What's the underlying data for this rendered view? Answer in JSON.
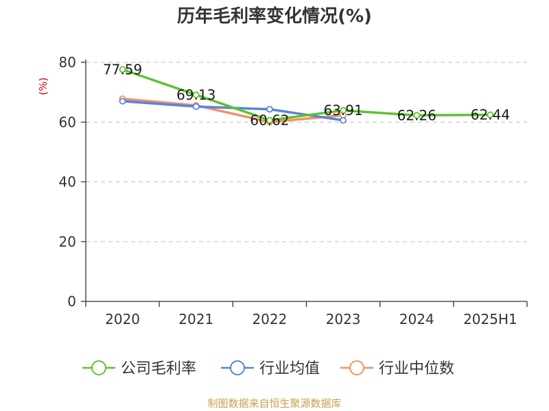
{
  "chart_data": {
    "type": "line",
    "title": "历年毛利率变化情况(%)",
    "ylabel": "(%)",
    "xlabel": "",
    "categories": [
      "2020",
      "2021",
      "2022",
      "2023",
      "2024",
      "2025H1"
    ],
    "ylim": [
      0,
      80
    ],
    "yticks": [
      0,
      20,
      40,
      60,
      80
    ],
    "grid": true,
    "legend_position": "bottom",
    "series": [
      {
        "name": "公司毛利率",
        "color": "#5ec22e",
        "values": [
          77.59,
          69.13,
          60.62,
          63.91,
          62.26,
          62.44
        ],
        "labels": [
          "77.59",
          "69.13",
          "60.62",
          "63.91",
          "62.26",
          "62.44"
        ]
      },
      {
        "name": "行业均值",
        "color": "#5585e0",
        "values": [
          67.0,
          65.2,
          64.3,
          60.6,
          null,
          null
        ]
      },
      {
        "name": "行业中位数",
        "color": "#f59060",
        "values": [
          67.8,
          65.6,
          60.0,
          62.3,
          null,
          null
        ]
      }
    ],
    "source": "制图数据来自恒生聚源数据库"
  }
}
